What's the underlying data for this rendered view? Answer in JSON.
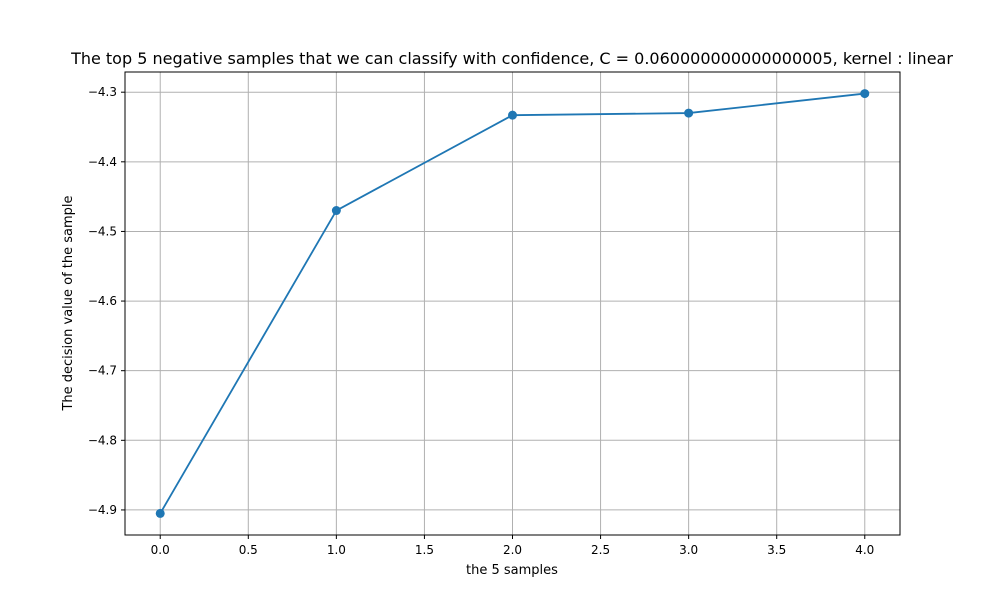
{
  "chart_data": {
    "type": "line",
    "title": "The top 5 negative samples that we can classify with confidence, C = 0.060000000000000005, kernel : linear",
    "xlabel": "the 5 samples",
    "ylabel": "The decision value of the sample",
    "x": [
      0,
      1,
      2,
      3,
      4
    ],
    "series": [
      {
        "values": [
          -4.905,
          -4.47,
          -4.333,
          -4.33,
          -4.302
        ]
      }
    ],
    "xlim": [
      -0.2,
      4.2
    ],
    "ylim": [
      -4.936,
      -4.271
    ],
    "xticks": [
      0.0,
      0.5,
      1.0,
      1.5,
      2.0,
      2.5,
      3.0,
      3.5,
      4.0
    ],
    "xtick_labels": [
      "0.0",
      "0.5",
      "1.0",
      "1.5",
      "2.0",
      "2.5",
      "3.0",
      "3.5",
      "4.0"
    ],
    "yticks": [
      -4.9,
      -4.8,
      -4.7,
      -4.6,
      -4.5,
      -4.4,
      -4.3
    ],
    "ytick_labels": [
      "−4.9",
      "−4.8",
      "−4.7",
      "−4.6",
      "−4.5",
      "−4.4",
      "−4.3"
    ],
    "grid": true,
    "marker": "circle",
    "line_color": "#1f77b4"
  }
}
